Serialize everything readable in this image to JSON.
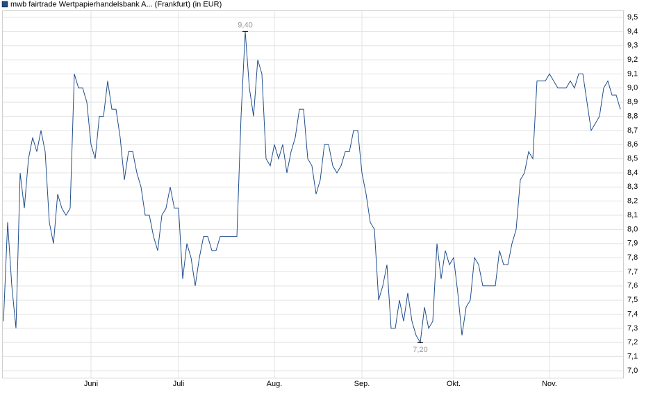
{
  "chart_data": {
    "type": "line",
    "categories": [
      null,
      null,
      null,
      null,
      null,
      null,
      null,
      null,
      null,
      null,
      null,
      null,
      null,
      null,
      null,
      null,
      null,
      null,
      null,
      null,
      null,
      "Juni",
      null,
      null,
      null,
      null,
      null,
      null,
      null,
      null,
      null,
      null,
      null,
      null,
      null,
      null,
      null,
      null,
      null,
      null,
      null,
      null,
      "Juli",
      null,
      null,
      null,
      null,
      null,
      null,
      null,
      null,
      null,
      null,
      null,
      null,
      null,
      null,
      null,
      null,
      null,
      null,
      null,
      null,
      null,
      null,
      "Aug.",
      null,
      null,
      null,
      null,
      null,
      null,
      null,
      null,
      null,
      null,
      null,
      null,
      null,
      null,
      null,
      null,
      null,
      null,
      null,
      null,
      "Sep.",
      null,
      null,
      null,
      null,
      null,
      null,
      null,
      null,
      null,
      null,
      null,
      null,
      null,
      null,
      null,
      null,
      null,
      null,
      null,
      null,
      null,
      "Okt.",
      null,
      null,
      null,
      null,
      null,
      null,
      null,
      null,
      null,
      null,
      null,
      null,
      null,
      null,
      null,
      null,
      null,
      null,
      null,
      null,
      null,
      null,
      "Nov.",
      null,
      null,
      null,
      null,
      null,
      null,
      null,
      null,
      null,
      null,
      null,
      null,
      null,
      null,
      null,
      null,
      null
    ],
    "series": [
      {
        "name": "mwb fairtrade Wertpapierhandelsbank A... (Frankfurt) (in EUR)",
        "color": "#1f4e8c",
        "values": [
          7.35,
          8.05,
          7.6,
          7.3,
          8.4,
          8.15,
          8.5,
          8.65,
          8.55,
          8.7,
          8.55,
          8.05,
          7.9,
          8.25,
          8.15,
          8.1,
          8.15,
          9.1,
          9.0,
          9.0,
          8.9,
          8.6,
          8.5,
          8.8,
          8.8,
          9.05,
          8.85,
          8.85,
          8.65,
          8.35,
          8.55,
          8.55,
          8.4,
          8.3,
          8.1,
          8.1,
          7.95,
          7.85,
          8.1,
          8.15,
          8.3,
          8.15,
          8.15,
          7.65,
          7.9,
          7.8,
          7.6,
          7.8,
          7.95,
          7.95,
          7.85,
          7.85,
          7.95,
          7.95,
          7.95,
          7.95,
          7.95,
          8.8,
          9.4,
          9.0,
          8.8,
          9.2,
          9.1,
          8.5,
          8.45,
          8.6,
          8.5,
          8.6,
          8.4,
          8.55,
          8.65,
          8.85,
          8.85,
          8.5,
          8.45,
          8.25,
          8.35,
          8.6,
          8.6,
          8.45,
          8.4,
          8.45,
          8.55,
          8.55,
          8.7,
          8.7,
          8.4,
          8.25,
          8.05,
          8.0,
          7.5,
          7.6,
          7.75,
          7.3,
          7.3,
          7.5,
          7.35,
          7.55,
          7.35,
          7.25,
          7.2,
          7.45,
          7.3,
          7.35,
          7.9,
          7.65,
          7.85,
          7.75,
          7.8,
          7.55,
          7.25,
          7.45,
          7.5,
          7.8,
          7.75,
          7.6,
          7.6,
          7.6,
          7.6,
          7.85,
          7.75,
          7.75,
          7.9,
          8.0,
          8.35,
          8.4,
          8.55,
          8.5,
          9.05,
          9.05,
          9.05,
          9.1,
          9.05,
          9.0,
          9.0,
          9.0,
          9.05,
          9.0,
          9.1,
          9.1,
          8.9,
          8.7,
          8.75,
          8.8,
          9.0,
          9.05,
          8.95,
          8.95,
          8.85
        ]
      }
    ],
    "annotations": [
      {
        "value": 9.4,
        "label": "9,40"
      },
      {
        "value": 7.2,
        "label": "7,20"
      }
    ],
    "ylim": [
      7.0,
      9.5
    ],
    "yticks": [
      {
        "value": 7.0,
        "label": "7,0"
      },
      {
        "value": 7.1,
        "label": "7,1"
      },
      {
        "value": 7.2,
        "label": "7,2"
      },
      {
        "value": 7.3,
        "label": "7,3"
      },
      {
        "value": 7.4,
        "label": "7,4"
      },
      {
        "value": 7.5,
        "label": "7,5"
      },
      {
        "value": 7.6,
        "label": "7,6"
      },
      {
        "value": 7.7,
        "label": "7,7"
      },
      {
        "value": 7.8,
        "label": "7,8"
      },
      {
        "value": 7.9,
        "label": "7,9"
      },
      {
        "value": 8.0,
        "label": "8,0"
      },
      {
        "value": 8.1,
        "label": "8,1"
      },
      {
        "value": 8.2,
        "label": "8,2"
      },
      {
        "value": 8.3,
        "label": "8,3"
      },
      {
        "value": 8.4,
        "label": "8,4"
      },
      {
        "value": 8.5,
        "label": "8,5"
      },
      {
        "value": 8.6,
        "label": "8,6"
      },
      {
        "value": 8.7,
        "label": "8,7"
      },
      {
        "value": 8.8,
        "label": "8,8"
      },
      {
        "value": 8.9,
        "label": "8,9"
      },
      {
        "value": 9.0,
        "label": "9,0"
      },
      {
        "value": 9.1,
        "label": "9,1"
      },
      {
        "value": 9.2,
        "label": "9,2"
      },
      {
        "value": 9.3,
        "label": "9,3"
      },
      {
        "value": 9.4,
        "label": "9,4"
      },
      {
        "value": 9.5,
        "label": "9,5"
      }
    ],
    "grid": true
  }
}
